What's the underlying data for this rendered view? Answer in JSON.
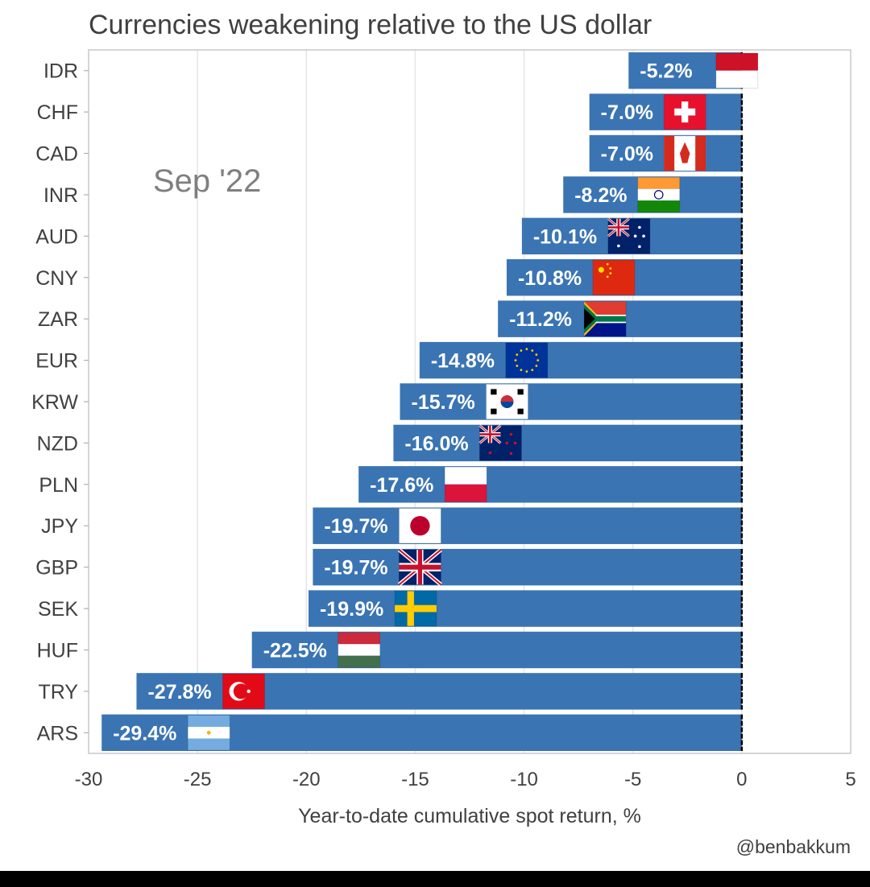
{
  "chart_data": {
    "type": "bar",
    "orientation": "horizontal",
    "title": "Currencies weakening relative to the US dollar",
    "annotation": "Sep '22",
    "xlabel": "Year-to-date cumulative spot return, %",
    "ylabel": "",
    "credit": "@benbakkum",
    "xlim": [
      -30,
      5
    ],
    "xticks": [
      -30,
      -25,
      -20,
      -15,
      -10,
      -5,
      0,
      5
    ],
    "xtick_labels": [
      "-30",
      "-25",
      "-20",
      "-15",
      "-10",
      "-5",
      "0",
      "5"
    ],
    "grid": "vertical",
    "bar_color": "#3a74b3",
    "categories": [
      "IDR",
      "CHF",
      "CAD",
      "INR",
      "AUD",
      "CNY",
      "ZAR",
      "EUR",
      "KRW",
      "NZD",
      "PLN",
      "JPY",
      "GBP",
      "SEK",
      "HUF",
      "TRY",
      "ARS"
    ],
    "values": [
      -5.2,
      -7.0,
      -7.0,
      -8.2,
      -10.1,
      -10.8,
      -11.2,
      -14.8,
      -15.7,
      -16.0,
      -17.6,
      -19.7,
      -19.7,
      -19.9,
      -22.5,
      -27.8,
      -29.4
    ],
    "labels": [
      "-5.2%",
      "-7.0%",
      "-7.0%",
      "-8.2%",
      "-10.1%",
      "-10.8%",
      "-11.2%",
      "-14.8%",
      "-15.7%",
      "-16.0%",
      "-17.6%",
      "-19.7%",
      "-19.7%",
      "-19.9%",
      "-22.5%",
      "-27.8%",
      "-29.4%"
    ],
    "flags": [
      "indonesia-flag-icon",
      "switzerland-flag-icon",
      "canada-flag-icon",
      "india-flag-icon",
      "australia-flag-icon",
      "china-flag-icon",
      "south-africa-flag-icon",
      "eu-flag-icon",
      "south-korea-flag-icon",
      "new-zealand-flag-icon",
      "poland-flag-icon",
      "japan-flag-icon",
      "uk-flag-icon",
      "sweden-flag-icon",
      "hungary-flag-icon",
      "turkey-flag-icon",
      "argentina-flag-icon"
    ]
  }
}
